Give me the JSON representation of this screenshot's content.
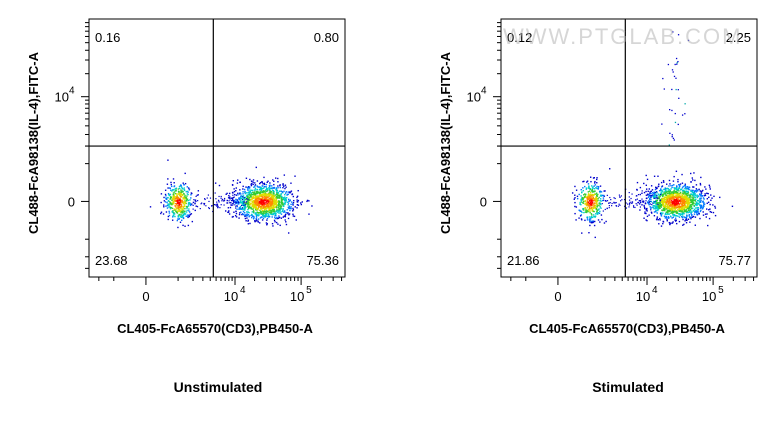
{
  "watermark": "WWW.PTGLAB.COM",
  "chart_data": [
    {
      "type": "scatter",
      "subtype": "flow-cytometry-density-dot-plot",
      "title": "Unstimulated",
      "xlabel": "CL405-FcA65570(CD3),PB450-A",
      "ylabel": "CL488-FcA98138(IL-4),FITC-A",
      "x_ticks": [
        {
          "value": 0,
          "label": "0"
        },
        {
          "value": 10000,
          "label": "10",
          "sup": "4"
        },
        {
          "value": 100000,
          "label": "10",
          "sup": "5"
        }
      ],
      "y_ticks": [
        {
          "value": 0,
          "label": "0"
        },
        {
          "value": 10000,
          "label": "10",
          "sup": "4"
        }
      ],
      "scale": "biexponential",
      "quadrant_gate": {
        "x": 4500,
        "y": 2000
      },
      "quadrant_percentages": {
        "upper_left": "0.16",
        "upper_right": "0.80",
        "lower_left": "23.68",
        "lower_right": "75.36"
      },
      "populations": [
        {
          "name": "CD3-negative",
          "x_center": 1000,
          "y_center": 0,
          "relative_size": 0.24
        },
        {
          "name": "CD3-positive",
          "x_center": 27000,
          "y_center": 0,
          "relative_size": 0.75
        }
      ],
      "color_scale": [
        "#0000cc",
        "#0077ff",
        "#00cccc",
        "#33cc33",
        "#dddd00",
        "#ff8800",
        "#ff0000"
      ]
    },
    {
      "type": "scatter",
      "subtype": "flow-cytometry-density-dot-plot",
      "title": "Stimulated",
      "xlabel": "CL405-FcA65570(CD3),PB450-A",
      "ylabel": "CL488-FcA98138(IL-4),FITC-A",
      "x_ticks": [
        {
          "value": 0,
          "label": "0"
        },
        {
          "value": 10000,
          "label": "10",
          "sup": "4"
        },
        {
          "value": 100000,
          "label": "10",
          "sup": "5"
        }
      ],
      "y_ticks": [
        {
          "value": 0,
          "label": "0"
        },
        {
          "value": 10000,
          "label": "10",
          "sup": "4"
        }
      ],
      "scale": "biexponential",
      "quadrant_gate": {
        "x": 4500,
        "y": 2000
      },
      "quadrant_percentages": {
        "upper_left": "0.12",
        "upper_right": "2.25",
        "lower_left": "21.86",
        "lower_right": "75.77"
      },
      "populations": [
        {
          "name": "CD3-negative",
          "x_center": 1000,
          "y_center": 0,
          "relative_size": 0.22
        },
        {
          "name": "CD3-positive",
          "x_center": 27000,
          "y_center": 0,
          "relative_size": 0.76
        },
        {
          "name": "CD3+IL-4+ streak",
          "x_center": 27000,
          "y_center": 20000,
          "relative_size": 0.02
        }
      ],
      "color_scale": [
        "#0000cc",
        "#0077ff",
        "#00cccc",
        "#33cc33",
        "#dddd00",
        "#ff8800",
        "#ff0000"
      ]
    }
  ]
}
